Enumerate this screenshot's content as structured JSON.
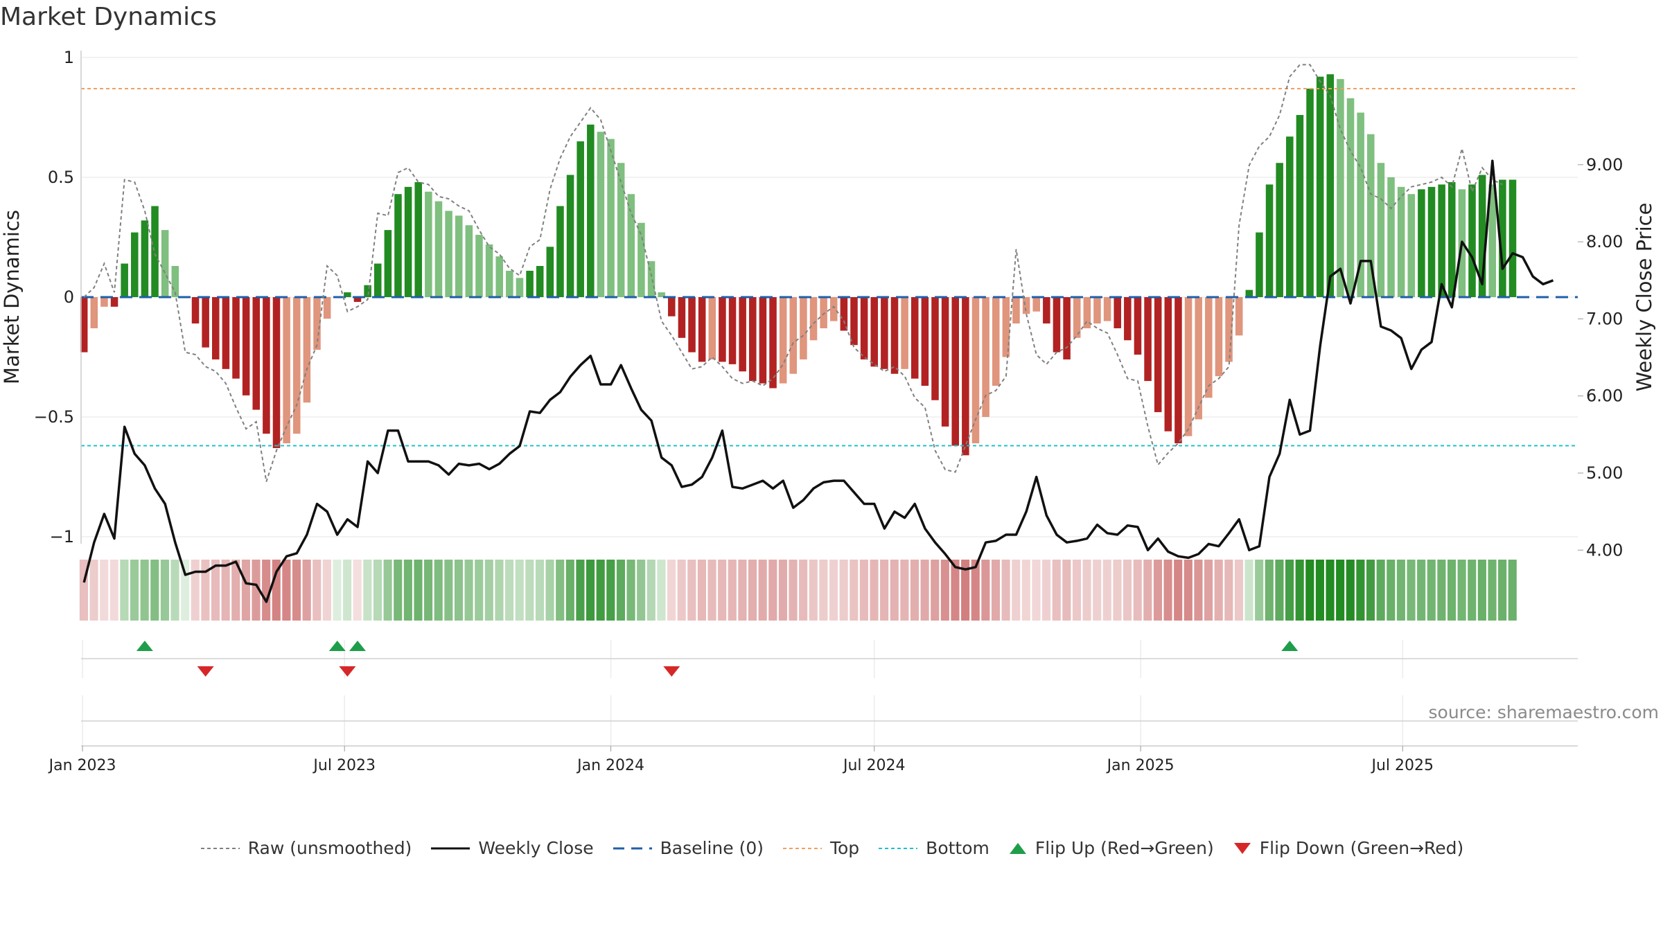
{
  "title": "Market Dynamics",
  "source": "source: sharemaestro.com",
  "colors": {
    "strong_green": "#228b22",
    "light_green": "#7fbf7f",
    "strong_red": "#b22222",
    "light_red": "#e0957d",
    "close_line": "#111111",
    "raw_line": "#808080",
    "baseline": "#1f5fa8",
    "top_line": "#f0a060",
    "bottom_line": "#20c0c8",
    "flip_up": "#1e9e4a",
    "flip_down": "#d62728"
  },
  "legend": {
    "raw": "Raw (unsmoothed)",
    "close": "Weekly Close",
    "baseline": "Baseline (0)",
    "top": "Top",
    "bottom": "Bottom",
    "flip_up": "Flip Up (Red→Green)",
    "flip_down": "Flip Down (Green→Red)"
  },
  "chart_data": {
    "type": "bar",
    "title": "Market Dynamics",
    "ylabel": "Market Dynamics",
    "y2label": "Weekly Close Price",
    "ylim": [
      -1,
      1
    ],
    "y2lim": [
      3.15,
      9.95
    ],
    "xlim": [
      "2022-12-31",
      "2025-10-30"
    ],
    "start_date": "2023-01-02",
    "x_ticks": [
      "Jan 2023",
      "Jul 2023",
      "Jan 2024",
      "Jul 2024",
      "Jan 2025",
      "Jul 2025"
    ],
    "x_tick_dates": [
      "2023-01-01",
      "2023-07-01",
      "2024-01-01",
      "2024-07-01",
      "2025-01-01",
      "2025-07-01"
    ],
    "y_ticks": [
      1,
      0.5,
      0,
      -0.5,
      -1
    ],
    "y_tick_labels": [
      "1",
      "0.5",
      "0",
      "−0.5",
      "−1"
    ],
    "y2_ticks": [
      9.0,
      8.0,
      7.0,
      6.0,
      5.0,
      4.0
    ],
    "y2_tick_labels": [
      "9.00",
      "8.00",
      "7.00",
      "6.00",
      "5.00",
      "4.00"
    ],
    "top_level": 0.87,
    "bottom_level": -0.62,
    "baseline": 0,
    "grid": true,
    "legend_position": "bottom",
    "series": [
      {
        "name": "Market Dynamics",
        "values": [
          -0.23,
          -0.13,
          -0.04,
          -0.04,
          0.14,
          0.27,
          0.32,
          0.38,
          0.28,
          0.13,
          0.0,
          -0.11,
          -0.21,
          -0.26,
          -0.3,
          -0.34,
          -0.41,
          -0.47,
          -0.57,
          -0.63,
          -0.61,
          -0.57,
          -0.44,
          -0.22,
          -0.09,
          0.0,
          0.02,
          -0.02,
          0.05,
          0.14,
          0.28,
          0.43,
          0.46,
          0.48,
          0.44,
          0.4,
          0.36,
          0.34,
          0.3,
          0.26,
          0.22,
          0.17,
          0.11,
          0.08,
          0.11,
          0.13,
          0.21,
          0.38,
          0.51,
          0.65,
          0.72,
          0.69,
          0.66,
          0.56,
          0.43,
          0.31,
          0.15,
          0.02,
          -0.08,
          -0.17,
          -0.23,
          -0.27,
          -0.26,
          -0.27,
          -0.28,
          -0.31,
          -0.35,
          -0.36,
          -0.38,
          -0.36,
          -0.32,
          -0.26,
          -0.18,
          -0.13,
          -0.1,
          -0.14,
          -0.2,
          -0.26,
          -0.29,
          -0.3,
          -0.32,
          -0.3,
          -0.34,
          -0.37,
          -0.43,
          -0.54,
          -0.62,
          -0.66,
          -0.61,
          -0.5,
          -0.37,
          -0.25,
          -0.11,
          -0.07,
          -0.06,
          -0.11,
          -0.23,
          -0.26,
          -0.17,
          -0.13,
          -0.11,
          -0.1,
          -0.13,
          -0.18,
          -0.24,
          -0.35,
          -0.48,
          -0.56,
          -0.61,
          -0.58,
          -0.51,
          -0.42,
          -0.33,
          -0.27,
          -0.16,
          0.03,
          0.27,
          0.47,
          0.56,
          0.67,
          0.76,
          0.87,
          0.92,
          0.93,
          0.91,
          0.83,
          0.77,
          0.68,
          0.56,
          0.5,
          0.46,
          0.43,
          0.45,
          0.46,
          0.47,
          0.48,
          0.45,
          0.47,
          0.51,
          0.47,
          0.49,
          0.49
        ]
      },
      {
        "name": "Raw (unsmoothed)",
        "values": [
          0.0,
          0.04,
          0.14,
          0.02,
          0.49,
          0.48,
          0.36,
          0.18,
          0.1,
          0.02,
          -0.23,
          -0.24,
          -0.29,
          -0.31,
          -0.36,
          -0.46,
          -0.55,
          -0.52,
          -0.77,
          -0.64,
          -0.54,
          -0.45,
          -0.3,
          -0.2,
          0.13,
          0.09,
          -0.06,
          -0.04,
          -0.01,
          0.35,
          0.34,
          0.52,
          0.54,
          0.48,
          0.47,
          0.42,
          0.41,
          0.38,
          0.36,
          0.28,
          0.21,
          0.18,
          0.12,
          0.09,
          0.21,
          0.24,
          0.45,
          0.58,
          0.67,
          0.73,
          0.79,
          0.74,
          0.61,
          0.48,
          0.35,
          0.26,
          0.09,
          -0.1,
          -0.16,
          -0.23,
          -0.3,
          -0.29,
          -0.25,
          -0.29,
          -0.34,
          -0.36,
          -0.35,
          -0.37,
          -0.34,
          -0.28,
          -0.19,
          -0.16,
          -0.11,
          -0.07,
          -0.04,
          -0.1,
          -0.21,
          -0.25,
          -0.28,
          -0.31,
          -0.29,
          -0.33,
          -0.42,
          -0.46,
          -0.64,
          -0.72,
          -0.73,
          -0.62,
          -0.51,
          -0.41,
          -0.39,
          -0.33,
          0.2,
          -0.07,
          -0.24,
          -0.28,
          -0.23,
          -0.21,
          -0.16,
          -0.1,
          -0.13,
          -0.15,
          -0.24,
          -0.34,
          -0.35,
          -0.54,
          -0.7,
          -0.65,
          -0.61,
          -0.55,
          -0.46,
          -0.37,
          -0.34,
          -0.29,
          0.3,
          0.55,
          0.63,
          0.67,
          0.76,
          0.92,
          0.97,
          0.97,
          0.9,
          0.84,
          0.7,
          0.61,
          0.54,
          0.43,
          0.41,
          0.37,
          0.42,
          0.46,
          0.47,
          0.48,
          0.5,
          0.46,
          0.62,
          0.44,
          0.54,
          0.49,
          0.47
        ]
      },
      {
        "name": "Weekly Close",
        "values": [
          3.58,
          4.1,
          4.47,
          4.15,
          5.6,
          5.25,
          5.1,
          4.8,
          4.6,
          4.1,
          3.68,
          3.72,
          3.72,
          3.8,
          3.8,
          3.85,
          3.57,
          3.55,
          3.33,
          3.72,
          3.92,
          3.96,
          4.2,
          4.6,
          4.5,
          4.2,
          4.4,
          4.3,
          5.15,
          5.0,
          5.55,
          5.55,
          5.15,
          5.15,
          5.15,
          5.1,
          4.98,
          5.12,
          5.1,
          5.12,
          5.05,
          5.12,
          5.25,
          5.35,
          5.8,
          5.78,
          5.95,
          6.05,
          6.25,
          6.4,
          6.52,
          6.15,
          6.15,
          6.4,
          6.1,
          5.82,
          5.68,
          5.2,
          5.1,
          4.82,
          4.85,
          4.95,
          5.2,
          5.55,
          4.82,
          4.8,
          4.85,
          4.9,
          4.8,
          4.9,
          4.55,
          4.65,
          4.8,
          4.88,
          4.9,
          4.9,
          4.75,
          4.6,
          4.6,
          4.28,
          4.5,
          4.42,
          4.6,
          4.28,
          4.1,
          3.95,
          3.78,
          3.75,
          3.78,
          4.1,
          4.12,
          4.2,
          4.2,
          4.5,
          4.95,
          4.45,
          4.2,
          4.1,
          4.12,
          4.15,
          4.33,
          4.22,
          4.2,
          4.32,
          4.3,
          4.0,
          4.15,
          3.98,
          3.92,
          3.9,
          3.95,
          4.08,
          4.05,
          4.22,
          4.4,
          4.0,
          4.05,
          4.95,
          5.25,
          5.95,
          5.5,
          5.55,
          6.65,
          7.55,
          7.65,
          7.2,
          7.75,
          7.75,
          6.9,
          6.85,
          6.75,
          6.35,
          6.6,
          6.7,
          7.45,
          7.15,
          8.0,
          7.8,
          7.45,
          9.05,
          7.65,
          7.85,
          7.8,
          7.55,
          7.45,
          7.5
        ]
      }
    ],
    "strip_values": [
      -0.23,
      -0.13,
      -0.04,
      -0.04,
      0.14,
      0.27,
      0.32,
      0.38,
      0.28,
      0.13,
      0.0,
      -0.11,
      -0.21,
      -0.26,
      -0.3,
      -0.34,
      -0.41,
      -0.47,
      -0.57,
      -0.63,
      -0.61,
      -0.57,
      -0.44,
      -0.22,
      -0.09,
      0.0,
      0.02,
      -0.02,
      0.05,
      0.14,
      0.28,
      0.43,
      0.46,
      0.48,
      0.44,
      0.4,
      0.36,
      0.34,
      0.3,
      0.26,
      0.22,
      0.17,
      0.11,
      0.08,
      0.11,
      0.13,
      0.21,
      0.38,
      0.51,
      0.65,
      0.72,
      0.69,
      0.66,
      0.56,
      0.43,
      0.31,
      0.15,
      0.02,
      -0.08,
      -0.17,
      -0.23,
      -0.27,
      -0.26,
      -0.27,
      -0.28,
      -0.31,
      -0.35,
      -0.36,
      -0.38,
      -0.36,
      -0.32,
      -0.26,
      -0.18,
      -0.13,
      -0.1,
      -0.14,
      -0.2,
      -0.26,
      -0.29,
      -0.3,
      -0.32,
      -0.3,
      -0.34,
      -0.37,
      -0.43,
      -0.54,
      -0.62,
      -0.66,
      -0.61,
      -0.5,
      -0.37,
      -0.25,
      -0.11,
      -0.07,
      -0.06,
      -0.11,
      -0.23,
      -0.26,
      -0.17,
      -0.13,
      -0.11,
      -0.1,
      -0.13,
      -0.18,
      -0.24,
      -0.35,
      -0.48,
      -0.56,
      -0.61,
      -0.58,
      -0.51,
      -0.42,
      -0.33,
      -0.27,
      -0.16,
      0.03,
      0.27,
      0.47,
      0.56,
      0.67,
      0.76,
      0.87,
      0.92,
      0.93,
      0.91,
      0.83,
      0.77,
      0.68,
      0.56,
      0.5,
      0.46,
      0.43,
      0.45,
      0.46,
      0.47,
      0.48,
      0.45,
      0.47,
      0.51,
      0.47,
      0.49,
      0.49
    ],
    "flip_up_dates": [
      "2023-02-13",
      "2023-06-26",
      "2023-07-10",
      "2025-04-14"
    ],
    "flip_down_dates": [
      "2023-03-27",
      "2023-07-03",
      "2024-02-12"
    ]
  }
}
